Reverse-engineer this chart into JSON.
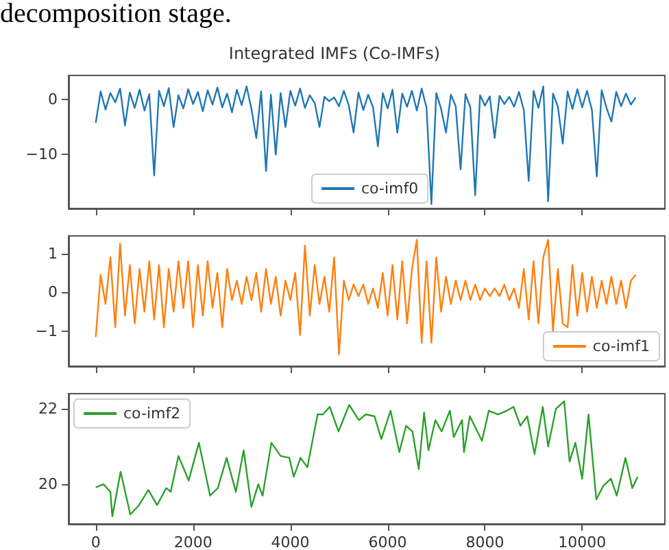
{
  "chart_data": [
    {
      "type": "line",
      "title": "Integrated IMFs (Co-IMFs)",
      "annotations": [
        "decomposition stage."
      ],
      "xlim": [
        -560,
        11700
      ],
      "xticks": [
        0,
        2000,
        4000,
        6000,
        8000,
        10000
      ],
      "ylim": [
        -19.8,
        4.4
      ],
      "yticks": [
        -10,
        0
      ],
      "tick_labels": "y",
      "grid": false,
      "legend": "bottom",
      "marker": "none",
      "line_style": "solid",
      "series": [
        {
          "name": "co-imf0",
          "color": "#1f77b4",
          "x": [
            0,
            100,
            200,
            300,
            400,
            500,
            600,
            700,
            800,
            900,
            1000,
            1100,
            1200,
            1300,
            1400,
            1500,
            1600,
            1700,
            1800,
            1900,
            2000,
            2100,
            2200,
            2300,
            2400,
            2500,
            2600,
            2700,
            2800,
            2900,
            3000,
            3100,
            3200,
            3300,
            3400,
            3500,
            3600,
            3700,
            3800,
            3900,
            4000,
            4100,
            4200,
            4300,
            4400,
            4500,
            4600,
            4700,
            4800,
            4900,
            5000,
            5100,
            5200,
            5300,
            5400,
            5500,
            5600,
            5700,
            5800,
            5900,
            6000,
            6100,
            6200,
            6300,
            6400,
            6500,
            6600,
            6700,
            6800,
            6900,
            7000,
            7100,
            7200,
            7300,
            7400,
            7500,
            7600,
            7700,
            7800,
            7900,
            8000,
            8100,
            8200,
            8300,
            8400,
            8500,
            8600,
            8700,
            8800,
            8900,
            9000,
            9100,
            9200,
            9300,
            9400,
            9500,
            9600,
            9700,
            9800,
            9900,
            10000,
            10100,
            10200,
            10300,
            10400,
            10500,
            10600,
            10700,
            10800,
            10900,
            11000,
            11100
          ],
          "values": [
            -4.2,
            1.5,
            -1.8,
            1.2,
            -0.5,
            2,
            -4.7,
            1.3,
            -1.5,
            1.8,
            -2,
            1,
            -13.8,
            1.6,
            -1.2,
            2.1,
            -5,
            0.8,
            -1.6,
            1.9,
            -0.8,
            1.4,
            -2.1,
            1.7,
            -0.9,
            2.2,
            -1.4,
            1.1,
            -2.3,
            1.8,
            -1,
            2.4,
            -1.7,
            -7,
            1.5,
            -13,
            0.9,
            -10,
            1.2,
            -5,
            1.6,
            -1.1,
            2,
            -1.5,
            0.8,
            -0.6,
            -5,
            0.5,
            -0.3,
            0.4,
            -1.2,
            1.6,
            -1,
            -6,
            1.3,
            -1.9,
            0.9,
            -1.4,
            -8.5,
            1.2,
            -1.6,
            1.8,
            -6,
            1.1,
            -1.3,
            1.6,
            -2,
            2,
            -1.5,
            -19,
            1.2,
            -1.7,
            -6,
            0.9,
            -1.2,
            -12.7,
            1,
            -1.4,
            -17.4,
            0.8,
            -1.1,
            0.6,
            -7,
            0.7,
            -0.8,
            0.5,
            -1.3,
            1.4,
            -1.9,
            -14.8,
            1.6,
            -1.5,
            2.4,
            -18.5,
            1.1,
            -1.3,
            -8,
            1.5,
            -1.7,
            1.9,
            -1.4,
            1.6,
            -1.9,
            -14,
            1.7,
            -1.5,
            -4,
            1.4,
            -1.2,
            1.1,
            -0.9,
            0.4
          ]
        }
      ]
    },
    {
      "type": "line",
      "xlim": [
        -560,
        11700
      ],
      "xticks": [
        0,
        2000,
        4000,
        6000,
        8000,
        10000
      ],
      "ylim": [
        -1.9,
        1.45
      ],
      "yticks": [
        -1,
        0,
        1
      ],
      "tick_labels": "y",
      "grid": false,
      "legend": "bottom right",
      "marker": "none",
      "line_style": "solid",
      "series": [
        {
          "name": "co-imf1",
          "color": "#ff7f0e",
          "x": [
            0,
            100,
            200,
            300,
            400,
            500,
            600,
            700,
            800,
            900,
            1000,
            1100,
            1200,
            1300,
            1400,
            1500,
            1600,
            1700,
            1800,
            1900,
            2000,
            2100,
            2200,
            2300,
            2400,
            2500,
            2600,
            2700,
            2800,
            2900,
            3000,
            3100,
            3200,
            3300,
            3400,
            3500,
            3600,
            3700,
            3800,
            3900,
            4000,
            4100,
            4200,
            4300,
            4400,
            4500,
            4600,
            4700,
            4800,
            4900,
            5000,
            5100,
            5200,
            5300,
            5400,
            5500,
            5600,
            5700,
            5800,
            5900,
            6000,
            6100,
            6200,
            6300,
            6400,
            6500,
            6600,
            6700,
            6800,
            6900,
            7000,
            7100,
            7200,
            7300,
            7400,
            7500,
            7600,
            7700,
            7800,
            7900,
            8000,
            8100,
            8200,
            8300,
            8400,
            8500,
            8600,
            8700,
            8800,
            8900,
            9000,
            9100,
            9200,
            9300,
            9400,
            9500,
            9600,
            9700,
            9800,
            9900,
            10000,
            10100,
            10200,
            10300,
            10400,
            10500,
            10600,
            10700,
            10800,
            10900,
            11000,
            11100
          ],
          "values": [
            -1.15,
            0.45,
            -0.3,
            0.9,
            -0.9,
            1.25,
            -0.6,
            0.7,
            -0.8,
            0.6,
            -0.5,
            0.8,
            -0.7,
            0.7,
            -0.9,
            0.6,
            -0.5,
            0.8,
            -0.4,
            0.8,
            -0.9,
            0.7,
            -0.6,
            0.8,
            -0.4,
            0.5,
            -0.9,
            0.6,
            -0.2,
            0.3,
            -0.3,
            0.4,
            -0.2,
            0.5,
            -0.5,
            0.6,
            -0.3,
            0.4,
            -0.6,
            0.3,
            -0.2,
            0.5,
            -1.1,
            1.2,
            -0.6,
            0.7,
            -0.3,
            0.4,
            -0.5,
            0.9,
            -1.6,
            0.3,
            -0.2,
            0.2,
            -0.1,
            0.2,
            -0.3,
            0.1,
            -0.4,
            0.5,
            -0.6,
            0.7,
            -0.7,
            0.8,
            -0.8,
            0.6,
            1.35,
            -1.3,
            0.8,
            -1.3,
            0.9,
            -0.5,
            0.4,
            -0.3,
            0.3,
            -0.2,
            0.3,
            -0.2,
            0.2,
            -0.2,
            0.1,
            -0.1,
            0.1,
            -0.1,
            0.2,
            -0.2,
            0.1,
            -0.4,
            0.6,
            -0.7,
            0.8,
            -0.8,
            0.9,
            1.35,
            -1.0,
            0.6,
            -0.8,
            -0.9,
            0.7,
            -0.6,
            0.5,
            -0.5,
            0.4,
            -0.4,
            0.3,
            -0.3,
            0.4,
            -0.3,
            0.3,
            -0.4,
            0.3,
            0.45
          ]
        }
      ]
    },
    {
      "type": "line",
      "xlim": [
        -560,
        11700
      ],
      "xticks": [
        0,
        2000,
        4000,
        6000,
        8000,
        10000
      ],
      "ylim": [
        18.95,
        22.4
      ],
      "yticks": [
        20,
        22
      ],
      "grid": false,
      "legend": "top left",
      "marker": "none",
      "line_style": "solid",
      "series": [
        {
          "name": "co-imf2",
          "color": "#2ca02c",
          "x": [
            0,
            160,
            300,
            340,
            510,
            710,
            890,
            1080,
            1260,
            1450,
            1540,
            1700,
            1910,
            2120,
            2350,
            2510,
            2690,
            2880,
            3040,
            3200,
            3340,
            3430,
            3610,
            3800,
            3980,
            4070,
            4210,
            4350,
            4560,
            4670,
            4810,
            4990,
            5210,
            5410,
            5550,
            5730,
            5870,
            6060,
            6240,
            6380,
            6510,
            6640,
            6750,
            6840,
            6980,
            7110,
            7280,
            7360,
            7530,
            7570,
            7690,
            7940,
            8080,
            8270,
            8450,
            8590,
            8730,
            8870,
            9020,
            9190,
            9300,
            9460,
            9630,
            9740,
            9860,
            10000,
            10130,
            10290,
            10430,
            10590,
            10710,
            10890,
            11030,
            11140
          ],
          "values": [
            19.92,
            20.0,
            19.8,
            19.15,
            20.33,
            19.2,
            19.45,
            19.85,
            19.45,
            19.9,
            19.8,
            20.75,
            20.1,
            21.1,
            19.7,
            19.9,
            20.7,
            19.8,
            20.9,
            19.4,
            20.0,
            19.7,
            21.1,
            20.75,
            20.7,
            20.2,
            20.7,
            20.45,
            21.85,
            21.85,
            22.05,
            21.4,
            22.1,
            21.7,
            21.85,
            21.8,
            21.2,
            21.95,
            20.85,
            21.55,
            21.4,
            20.4,
            21.9,
            20.9,
            21.7,
            21.4,
            21.95,
            21.25,
            21.7,
            20.85,
            21.8,
            21.15,
            21.95,
            21.85,
            21.95,
            22.05,
            21.55,
            21.8,
            20.8,
            22.05,
            21.0,
            22.0,
            22.2,
            20.6,
            21.1,
            20.15,
            21.85,
            19.6,
            19.95,
            20.15,
            19.7,
            20.7,
            19.9,
            20.2
          ]
        }
      ]
    }
  ]
}
